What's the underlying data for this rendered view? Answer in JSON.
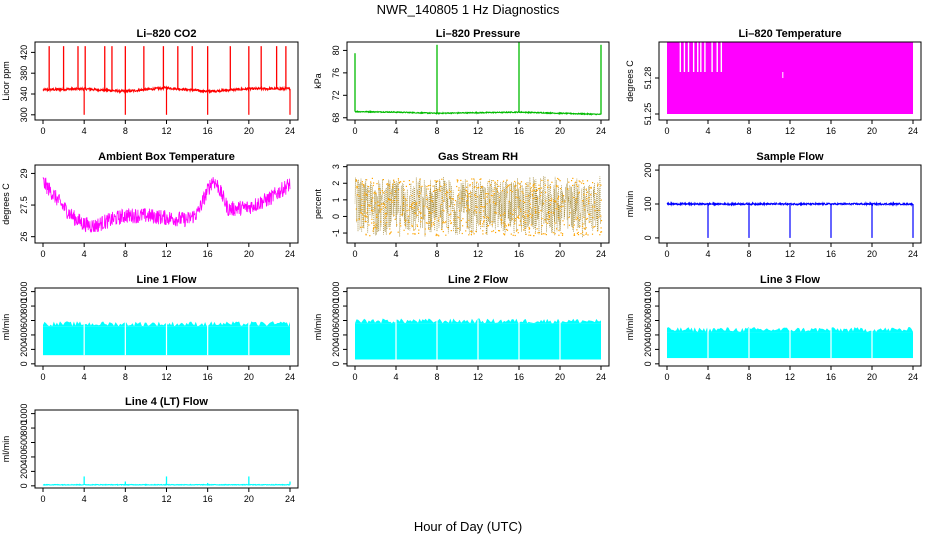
{
  "figure": {
    "title": "NWR_140805  1 Hz Diagnostics",
    "xlabel": "Hour of Day (UTC)",
    "x_ticks": [
      0,
      4,
      8,
      12,
      16,
      20,
      24
    ]
  },
  "chart_data": [
    {
      "id": "co2",
      "type": "line",
      "title": "Li–820 CO2",
      "ylabel": "Licor ppm",
      "color": "#ff0000",
      "x_range": [
        0,
        24
      ],
      "y_range": [
        290,
        440
      ],
      "y_ticks": [
        300,
        340,
        380,
        420
      ],
      "series": [
        {
          "x": [
            0,
            4,
            8,
            12,
            16,
            20,
            24
          ],
          "y": [
            348,
            350,
            345,
            352,
            345,
            350,
            350
          ]
        }
      ],
      "spikes_up": [
        0.6,
        2.0,
        3.4,
        4.1,
        6.0,
        6.7,
        8.0,
        9.8,
        11.7,
        13.1,
        14.5,
        16.0,
        18.2,
        20.0,
        21.2,
        22.7,
        23.6
      ],
      "spikes_down": [
        4.0,
        8.0,
        12.0,
        16.0,
        20.0,
        24.0
      ]
    },
    {
      "id": "pressure",
      "type": "line",
      "title": "Li–820 Pressure",
      "ylabel": "kPa",
      "color": "#00bb00",
      "x_range": [
        0,
        24
      ],
      "y_range": [
        67.6,
        81.5
      ],
      "y_ticks": [
        68,
        72,
        76,
        80
      ],
      "series": [
        {
          "x": [
            0,
            4,
            8,
            12,
            16,
            20,
            24
          ],
          "y": [
            69.1,
            69.0,
            68.8,
            68.9,
            69.0,
            68.8,
            68.6
          ]
        }
      ],
      "spikes_up": [
        0,
        8,
        16,
        24
      ],
      "spike_tops": [
        79.5,
        81.0,
        81.5,
        81.0
      ]
    },
    {
      "id": "licor_temp",
      "type": "area",
      "title": "Li–820 Temperature",
      "ylabel": "degrees C",
      "color": "#ff00ff",
      "x_range": [
        0,
        24
      ],
      "y_range": [
        51.245,
        51.31
      ],
      "y_ticks": [
        51.25,
        51.28
      ],
      "band": [
        51.25,
        51.31
      ]
    },
    {
      "id": "box_temp",
      "type": "line",
      "title": "Ambient Box Temperature",
      "ylabel": "degrees C",
      "color": "#ff00ff",
      "x_range": [
        0,
        24
      ],
      "y_range": [
        25.7,
        29.4
      ],
      "y_ticks": [
        26.0,
        27.5,
        29.0
      ],
      "series": [
        {
          "x": [
            0,
            1,
            2,
            3,
            4,
            5,
            6,
            8,
            10,
            12,
            14,
            15,
            16,
            16.5,
            17,
            18,
            20,
            22,
            24
          ],
          "y": [
            28.6,
            28.0,
            27.4,
            26.9,
            26.6,
            26.5,
            26.7,
            27.0,
            27.0,
            26.9,
            26.8,
            27.1,
            28.2,
            28.7,
            28.4,
            27.3,
            27.4,
            27.8,
            28.5
          ]
        }
      ]
    },
    {
      "id": "rh",
      "type": "scatter",
      "title": "Gas Stream RH",
      "ylabel": "percent",
      "color": "#ffa500",
      "x_range": [
        0,
        24
      ],
      "y_range": [
        -1.6,
        3.1
      ],
      "y_ticks": [
        -1,
        0,
        1,
        2,
        3
      ],
      "band": [
        -1.0,
        2.3
      ],
      "center": 0.6
    },
    {
      "id": "sample_flow",
      "type": "line",
      "title": "Sample Flow",
      "ylabel": "ml/min",
      "color": "#0000ff",
      "x_range": [
        0,
        24
      ],
      "y_range": [
        -15,
        215
      ],
      "y_ticks": [
        0,
        100,
        200
      ],
      "series": [
        {
          "x": [
            0,
            4,
            8,
            12,
            16,
            20,
            24
          ],
          "y": [
            100,
            100,
            100,
            100,
            100,
            100,
            100
          ]
        }
      ],
      "spikes_down": [
        4,
        8,
        12,
        16,
        20,
        24
      ]
    },
    {
      "id": "line1",
      "type": "area",
      "title": "Line 1 Flow",
      "ylabel": "ml/min",
      "color": "#00ffff",
      "x_range": [
        0,
        24
      ],
      "y_range": [
        -30,
        1050
      ],
      "y_ticks": [
        0,
        200,
        400,
        600,
        800,
        1000
      ],
      "band": [
        120,
        520
      ],
      "gaps": [
        4,
        8,
        12,
        16,
        20
      ]
    },
    {
      "id": "line2",
      "type": "area",
      "title": "Line 2 Flow",
      "ylabel": "ml/min",
      "color": "#00ffff",
      "x_range": [
        0,
        24
      ],
      "y_range": [
        -30,
        1050
      ],
      "y_ticks": [
        0,
        200,
        400,
        600,
        800,
        1000
      ],
      "band": [
        60,
        560
      ],
      "gaps": [
        4,
        8,
        12,
        16,
        20
      ]
    },
    {
      "id": "line3",
      "type": "area",
      "title": "Line 3 Flow",
      "ylabel": "ml/min",
      "color": "#00ffff",
      "x_range": [
        0,
        24
      ],
      "y_range": [
        -30,
        1050
      ],
      "y_ticks": [
        0,
        200,
        400,
        600,
        800,
        1000
      ],
      "band": [
        80,
        440
      ],
      "gaps": [
        4,
        8,
        12,
        16,
        20
      ]
    },
    {
      "id": "line4",
      "type": "line",
      "title": "Line 4 (LT) Flow",
      "ylabel": "ml/min",
      "color": "#00ffff",
      "x_range": [
        0,
        24
      ],
      "y_range": [
        -30,
        1050
      ],
      "y_ticks": [
        0,
        200,
        400,
        600,
        800,
        1000
      ],
      "series": [
        {
          "x": [
            0,
            24
          ],
          "y": [
            15,
            15
          ]
        }
      ],
      "spikes_up": [
        4,
        8,
        12,
        16,
        20,
        24
      ],
      "spike_tops": [
        130,
        60,
        130,
        40,
        130,
        60
      ]
    }
  ]
}
